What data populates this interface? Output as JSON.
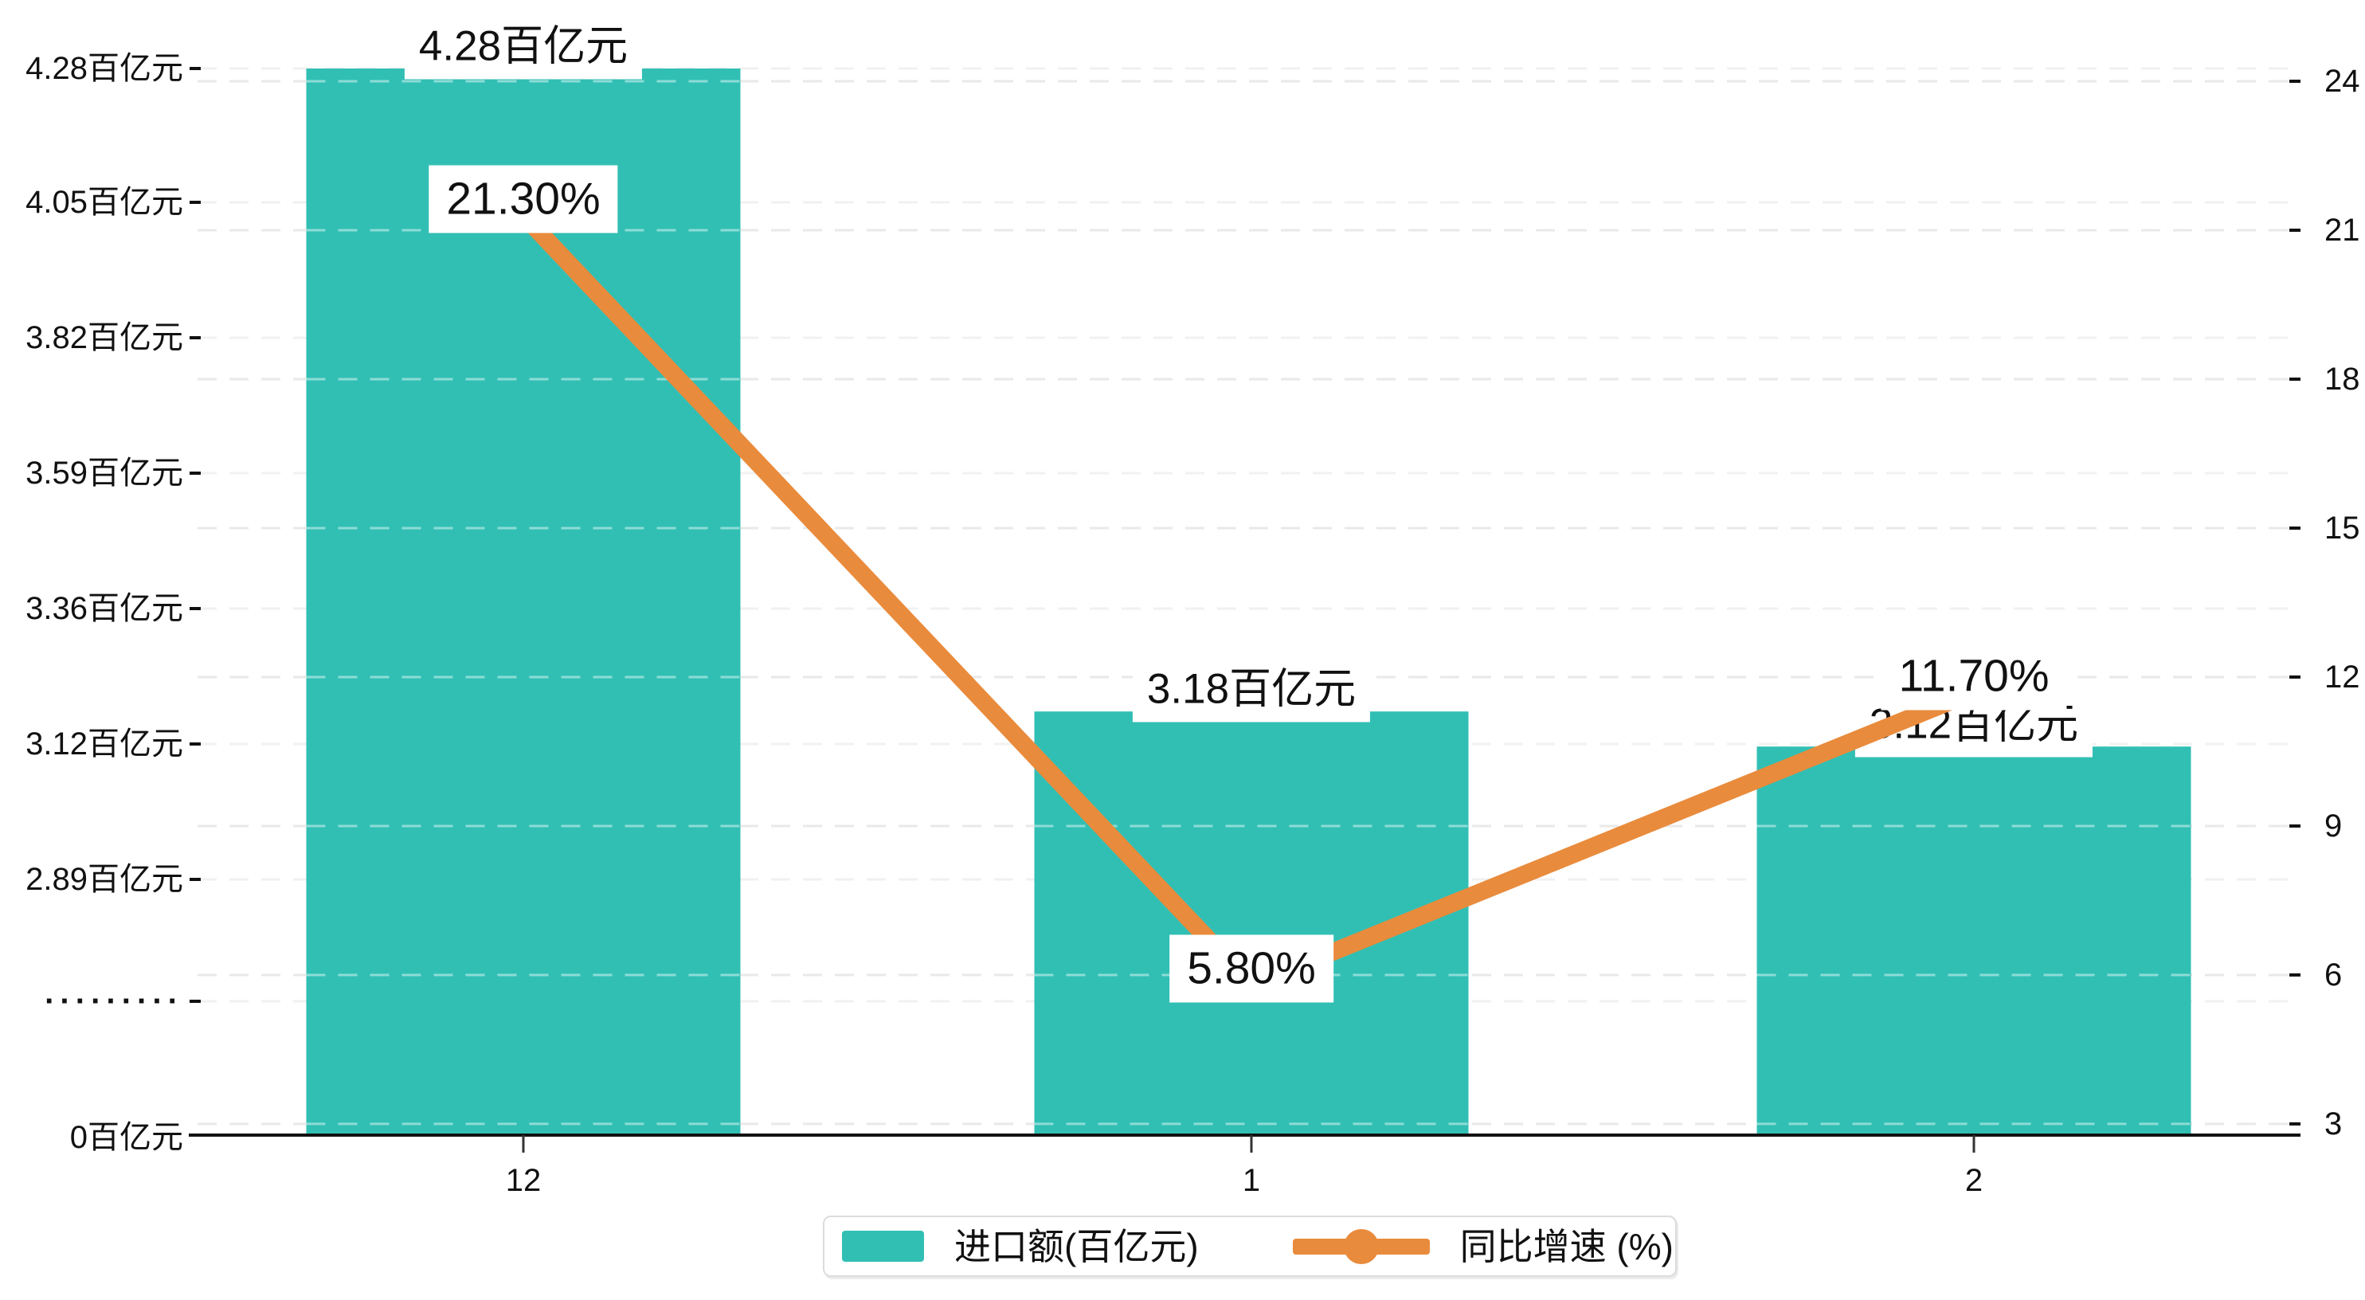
{
  "chart_data": {
    "type": "combo-bar-line",
    "categories": [
      "12",
      "1",
      "2"
    ],
    "series": [
      {
        "name": "进口额(百亿元)",
        "type": "bar",
        "axis": "left",
        "unit": "百亿元",
        "values": [
          4.28,
          3.18,
          3.12
        ],
        "data_labels": [
          "4.28百亿元",
          "3.18百亿元",
          "3.12百亿元"
        ],
        "color": "#31bfb4"
      },
      {
        "name": "同比增速 (%)",
        "type": "line",
        "axis": "right",
        "unit": "%",
        "values": [
          21.3,
          5.8,
          11.7
        ],
        "data_labels": [
          "21.30%",
          "5.80%",
          "11.70%"
        ],
        "color": "#e98b3c"
      }
    ],
    "left_axis": {
      "tick_labels": [
        "4.28百亿元",
        "4.05百亿元",
        "3.82百亿元",
        "3.59百亿元",
        "3.36百亿元",
        "3.12百亿元",
        "2.89百亿元",
        "·········",
        "0百亿元"
      ],
      "broken_axis": true
    },
    "right_axis": {
      "tick_labels": [
        "24",
        "21",
        "18",
        "15",
        "12",
        "9",
        "6",
        "3"
      ],
      "min": 3,
      "max": 24,
      "interval": 3
    },
    "x_axis": {
      "tick_labels": [
        "12",
        "1",
        "2"
      ]
    },
    "legend": {
      "items": [
        {
          "label": "进口额(百亿元)",
          "marker": "bar-swatch"
        },
        {
          "label": "同比增速 (%)",
          "marker": "line-dot"
        }
      ]
    },
    "grid": "dashed",
    "colors": {
      "bar": "#31bfb4",
      "line": "#e98b3c",
      "axis": "#111111",
      "gridline": "#ececec",
      "label_text": "#111111",
      "label_bg": "#ffffff",
      "legend_border": "#dcdcdc"
    }
  }
}
